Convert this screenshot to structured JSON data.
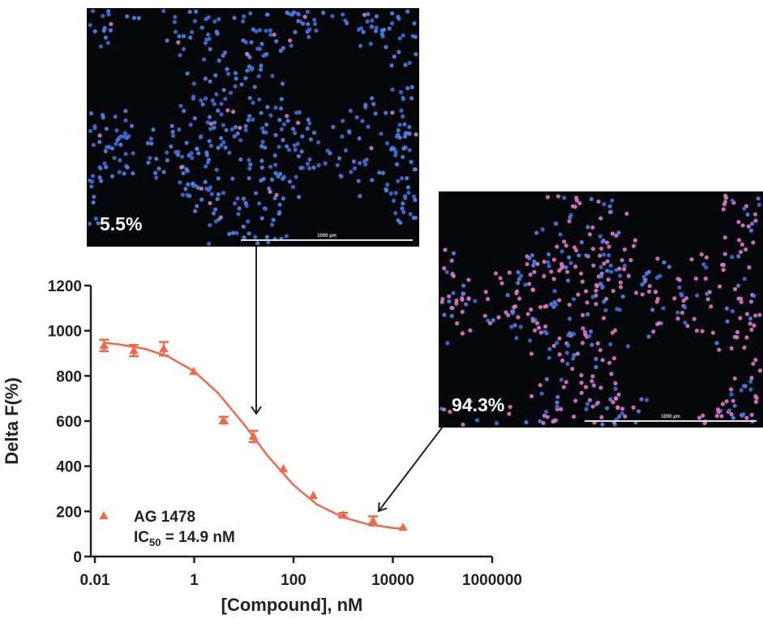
{
  "chart_data": {
    "type": "scatter",
    "x_label": "[Compound], nM",
    "y_label": "Delta F(%)",
    "log_x": true,
    "xlim": [
      0.01,
      1000000
    ],
    "xticks": [
      0.01,
      1,
      100,
      10000,
      1000000
    ],
    "ylim": [
      0,
      1200
    ],
    "yticks": [
      0,
      200,
      400,
      600,
      800,
      1000,
      1200
    ],
    "series": [
      {
        "name": "AG 1478",
        "color": "#ee6a4b",
        "x": [
          0.0153,
          0.061,
          0.244,
          0.977,
          3.9,
          15.6,
          62.5,
          250,
          1000,
          4000,
          16000
        ],
        "values": [
          935,
          912,
          920,
          819,
          604,
          532,
          388,
          270,
          183,
          158,
          129
        ],
        "errors": [
          25,
          25,
          30,
          0,
          15,
          25,
          0,
          0,
          10,
          20,
          0
        ]
      }
    ],
    "fit": {
      "x": [
        0.015,
        0.03,
        0.1,
        0.3,
        1,
        3,
        10,
        30,
        100,
        300,
        1000,
        3000,
        10000,
        16000
      ],
      "values": [
        947,
        940,
        920,
        886,
        820,
        725,
        586,
        447,
        316,
        230,
        173,
        144,
        127,
        123
      ]
    },
    "annotation": {
      "main": "IC",
      "sub": "50",
      "rest": " = 14.9 nM"
    }
  },
  "images": [
    {
      "label": "5.5%",
      "scale": "1000 µm"
    },
    {
      "label": "94.3%",
      "scale": "1000 µm"
    }
  ]
}
